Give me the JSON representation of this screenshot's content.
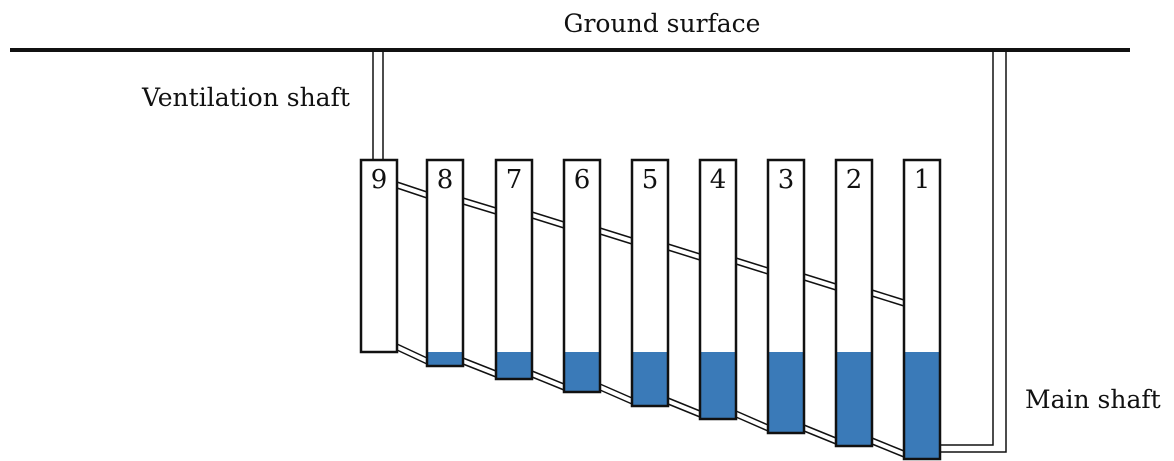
{
  "labels": {
    "ground": "Ground surface",
    "ventilation": "Ventilation shaft",
    "main": "Main shaft"
  },
  "colors": {
    "water": "#3a7ab8",
    "line": "#111111"
  },
  "chambers": [
    {
      "number": "9"
    },
    {
      "number": "8"
    },
    {
      "number": "7"
    },
    {
      "number": "6"
    },
    {
      "number": "5"
    },
    {
      "number": "4"
    },
    {
      "number": "3"
    },
    {
      "number": "2"
    },
    {
      "number": "1"
    }
  ]
}
